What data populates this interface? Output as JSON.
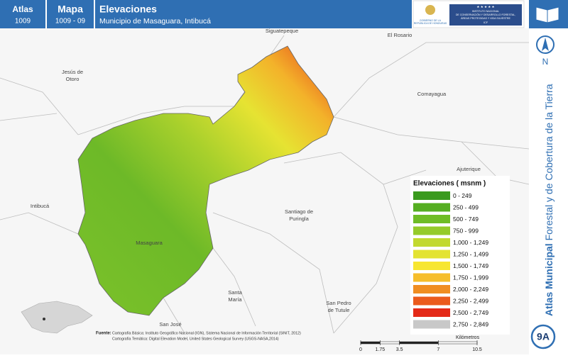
{
  "header": {
    "atlas_label": "Atlas",
    "atlas_number": "1009",
    "mapa_label": "Mapa",
    "mapa_number": "1009 - 09",
    "title": "Elevaciones",
    "subtitle": "Municipio de Masaguara, Intibucá",
    "government": [
      "GOBIERNO DE LA",
      "REPÚBLICA DE HONDURAS"
    ],
    "institute": [
      "INSTITUTO NACIONAL",
      "DE CONSERVACIÓN Y DESARROLLO FORESTAL,",
      "ÁREAS PROTEGIDAS Y VIDA SILVESTRE",
      "ICF"
    ]
  },
  "places": {
    "siguatepeque": "Siguatepeque",
    "el_rosario": "El Rosario",
    "jesus_de_otoro": [
      "Jesús de",
      "Otoro"
    ],
    "comayagua": "Comayagua",
    "ajuterique": "Ajuterique",
    "intibuca": "Intibucá",
    "santiago_de_puringla": [
      "Santiago de",
      "Puringla"
    ],
    "masaguara": "Masaguara",
    "santa_maria": [
      "Santa",
      "María"
    ],
    "san_jose": "San José",
    "san_pedro_de_tutule": [
      "San Pedro",
      "de Tutule"
    ]
  },
  "legend": {
    "title": "Elevaciones ( msnm )",
    "items": [
      {
        "label": "0 - 249",
        "color": "#3a9a1e"
      },
      {
        "label": "250 - 499",
        "color": "#55ae22"
      },
      {
        "label": "500 - 749",
        "color": "#6fbd26"
      },
      {
        "label": "750 - 999",
        "color": "#95cb2a"
      },
      {
        "label": "1,000 - 1,249",
        "color": "#c2d92e"
      },
      {
        "label": "1,250 - 1,499",
        "color": "#e3e332"
      },
      {
        "label": "1,500 - 1,749",
        "color": "#f7e631"
      },
      {
        "label": "1,750 - 1,999",
        "color": "#f6be2a"
      },
      {
        "label": "2,000 - 2,249",
        "color": "#f08e22"
      },
      {
        "label": "2,250 - 2,499",
        "color": "#eb5b1d"
      },
      {
        "label": "2,500 - 2,749",
        "color": "#e42a18"
      },
      {
        "label": "2,750 - 2,849",
        "color": "#c8c8c8"
      }
    ]
  },
  "north": "N",
  "sidebar": {
    "bold": "Atlas Municipal",
    "rest": "Forestal y de Cobertura de la Tierra"
  },
  "badge": "9A",
  "sources": {
    "label": "Fuente:",
    "lines": [
      "Cartografía Básica: Instituto Geográfico Nacional (IGN), Sistema Nacional de Información Territorial (SINIT, 2012)",
      "Cartografía Temática: Digital Elevation Model, United States Geological Survey (USGS-NASA,2014)"
    ]
  },
  "scale_bar": {
    "ticks": [
      0,
      1.75,
      3.5,
      7,
      10.5
    ],
    "unit": "Kilómetros"
  }
}
